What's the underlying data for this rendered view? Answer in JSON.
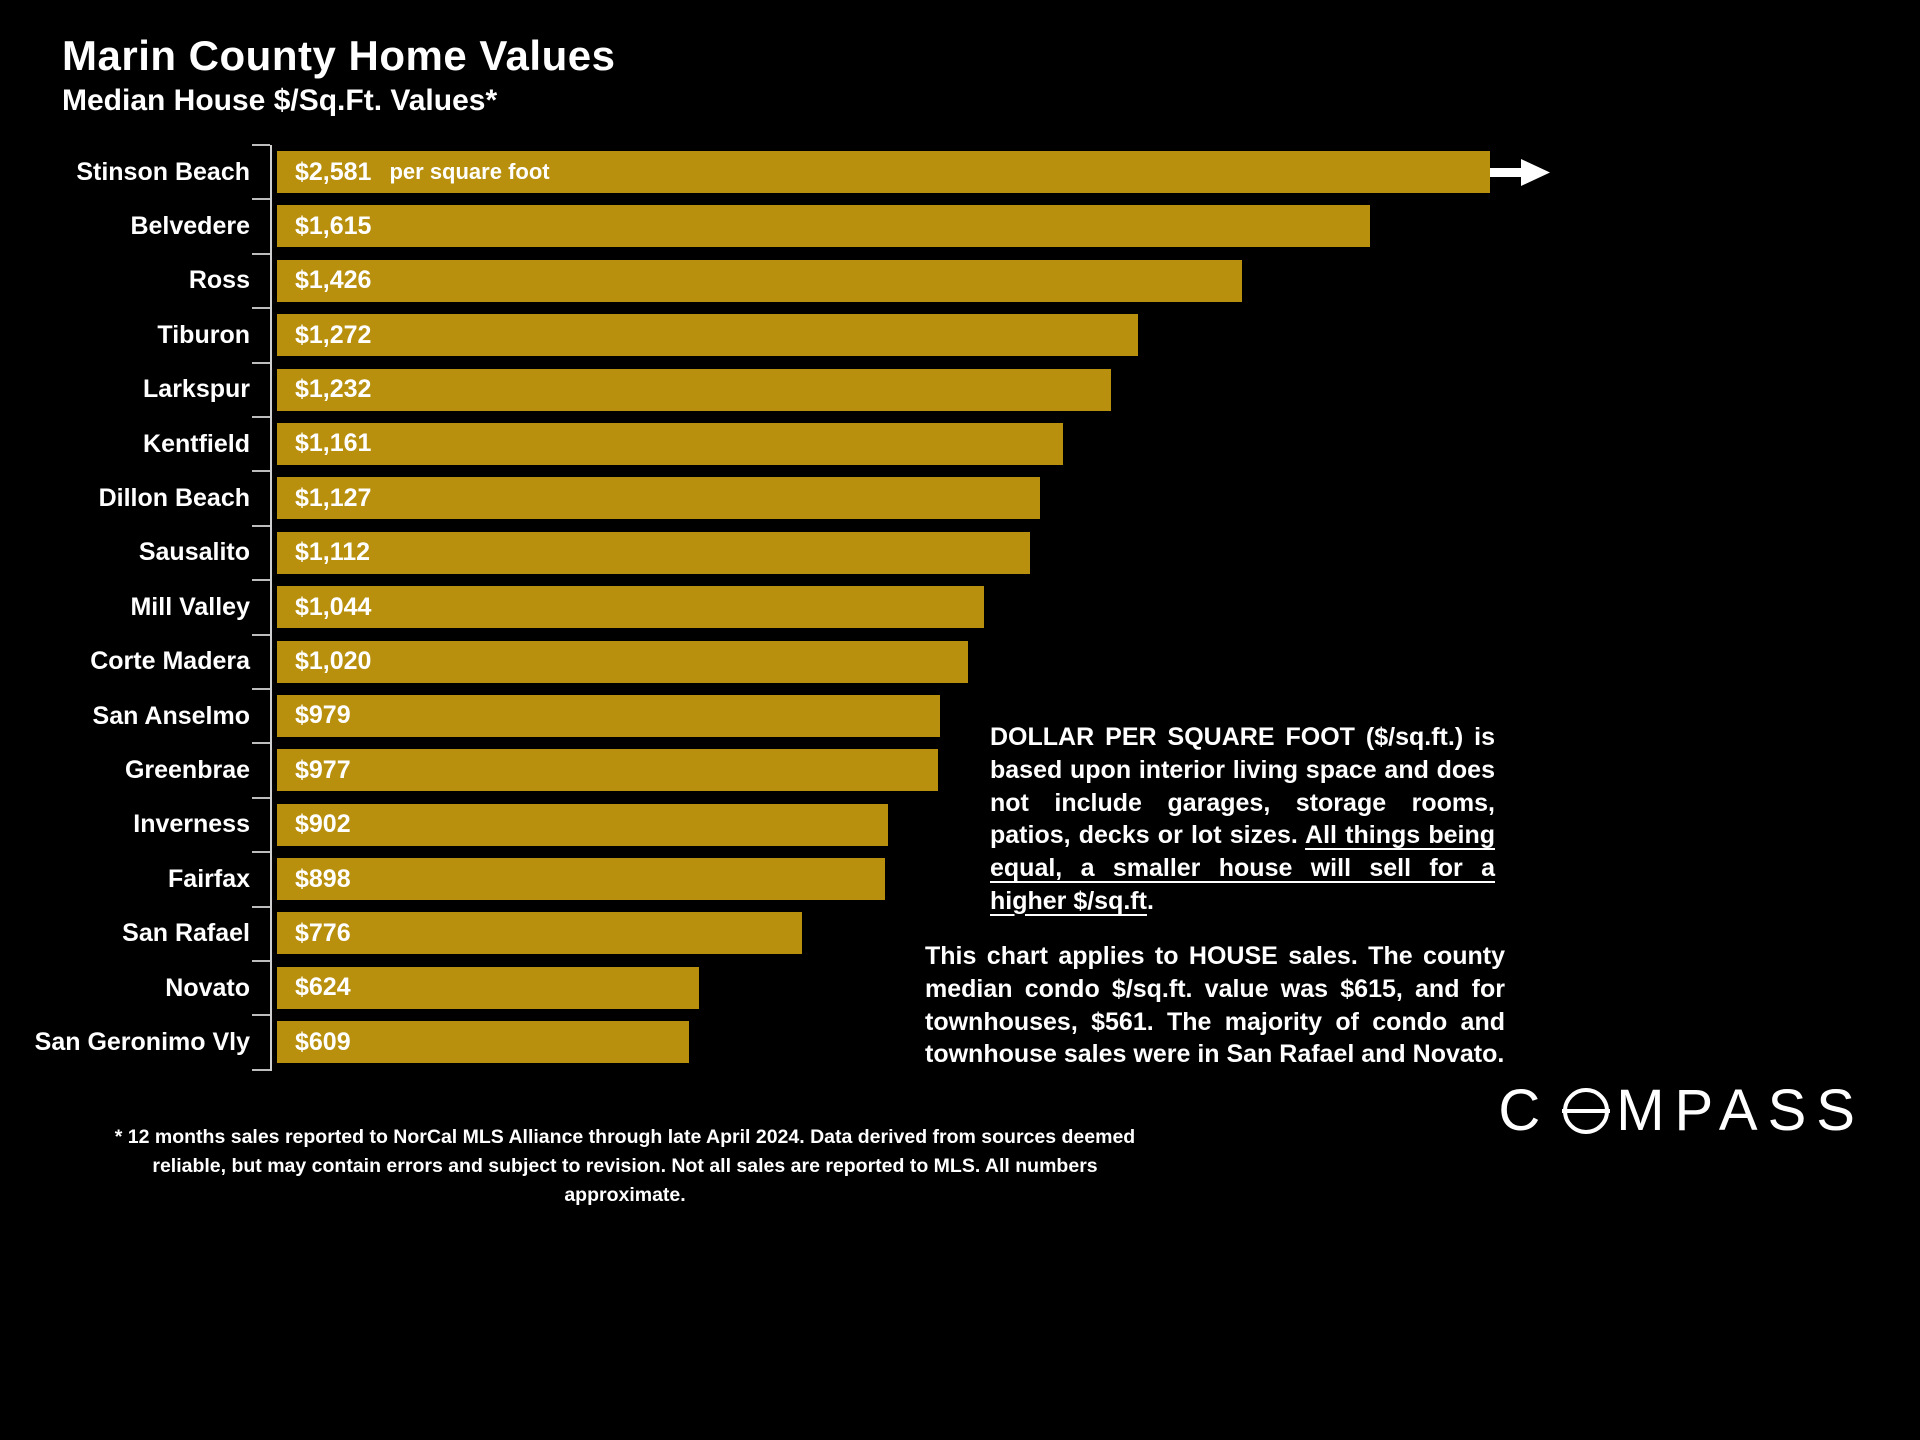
{
  "header": {
    "title": "Marin County Home Values",
    "subtitle": "Median House $/Sq.Ft. Values*"
  },
  "chart_data": {
    "type": "bar",
    "title": "Marin County Home Values",
    "subtitle": "Median House $/Sq.Ft. Values*",
    "orientation": "horizontal",
    "unit_label": "per square foot",
    "categories": [
      "Stinson Beach",
      "Belvedere",
      "Ross",
      "Tiburon",
      "Larkspur",
      "Kentfield",
      "Dillon Beach",
      "Sausalito",
      "Mill Valley",
      "Corte Madera",
      "San Anselmo",
      "Greenbrae",
      "Inverness",
      "Fairfax",
      "San Rafael",
      "Novato",
      "San Geronimo Vly"
    ],
    "values": [
      2581,
      1615,
      1426,
      1272,
      1232,
      1161,
      1127,
      1112,
      1044,
      1020,
      979,
      977,
      902,
      898,
      776,
      624,
      609
    ],
    "value_labels": [
      "$2,581",
      "$1,615",
      "$1,426",
      "$1,272",
      "$1,232",
      "$1,161",
      "$1,127",
      "$1,112",
      "$1,044",
      "$1,020",
      "$979",
      "$977",
      "$902",
      "$898",
      "$776",
      "$624",
      "$609"
    ],
    "bar_color": "#b8900d",
    "truncated_bar": "Stinson Beach",
    "grid": false,
    "legend": "none"
  },
  "notes": {
    "sqft_definition_part1": "DOLLAR PER SQUARE FOOT ($/sq.ft.) is based upon interior living space and does not include garages, storage rooms, patios, decks or lot sizes. ",
    "sqft_definition_underlined": "All things being equal, a smaller house will sell for a higher $/sq.ft",
    "sqft_definition_end": ".",
    "house_sales": "This chart applies to HOUSE sales. The county median condo $/sq.ft. value was $615, and for townhouses, $561. The majority of condo and townhouse sales were in San Rafael and Novato."
  },
  "footnote": {
    "text": "* 12 months sales reported to NorCal MLS Alliance through late April 2024. Data derived from sources deemed reliable, but may contain errors and subject to revision. Not all sales are reported to MLS. All numbers approximate."
  },
  "logo": {
    "brand": "COMPASS",
    "left": "C",
    "right": "MPASS"
  }
}
